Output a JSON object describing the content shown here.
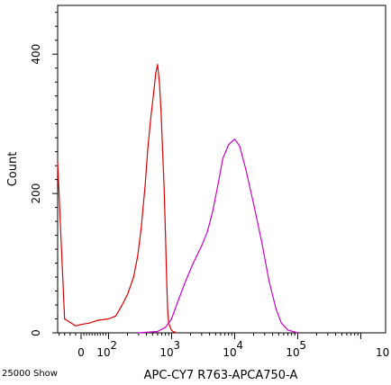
{
  "chart_data": {
    "type": "histogram",
    "title": "",
    "xlabel": "APC-CY7 R763-APCA750-A",
    "ylabel": "Count",
    "footnote": "25000 Show",
    "x_scale": "biexponential",
    "x_tick_labels": [
      "0",
      "10",
      "2",
      "10",
      "3",
      "10",
      "4",
      "10",
      "5",
      "10"
    ],
    "y_ticks": [
      0,
      200,
      400
    ],
    "ylim": [
      0,
      470
    ],
    "grid": false,
    "legend": "none",
    "series": [
      {
        "color": "#dd0000",
        "points": [
          [
            -100,
            245
          ],
          [
            -60,
            20
          ],
          [
            -20,
            10
          ],
          [
            0,
            12
          ],
          [
            30,
            14
          ],
          [
            60,
            18
          ],
          [
            100,
            20
          ],
          [
            130,
            24
          ],
          [
            160,
            38
          ],
          [
            200,
            55
          ],
          [
            250,
            80
          ],
          [
            290,
            110
          ],
          [
            330,
            150
          ],
          [
            380,
            210
          ],
          [
            420,
            265
          ],
          [
            470,
            310
          ],
          [
            520,
            345
          ],
          [
            560,
            372
          ],
          [
            600,
            385
          ],
          [
            640,
            360
          ],
          [
            680,
            320
          ],
          [
            720,
            265
          ],
          [
            760,
            210
          ],
          [
            800,
            140
          ],
          [
            840,
            70
          ],
          [
            870,
            30
          ],
          [
            900,
            15
          ],
          [
            950,
            8
          ],
          [
            1000,
            4
          ],
          [
            1050,
            2
          ],
          [
            1200,
            0
          ]
        ]
      },
      {
        "color": "#cc00cc",
        "points": [
          [
            300,
            0
          ],
          [
            600,
            2
          ],
          [
            800,
            8
          ],
          [
            900,
            14
          ],
          [
            1000,
            20
          ],
          [
            1200,
            40
          ],
          [
            1600,
            70
          ],
          [
            2200,
            100
          ],
          [
            3000,
            125
          ],
          [
            3700,
            145
          ],
          [
            4500,
            175
          ],
          [
            5500,
            215
          ],
          [
            6500,
            250
          ],
          [
            8000,
            270
          ],
          [
            10000,
            278
          ],
          [
            12000,
            268
          ],
          [
            15000,
            235
          ],
          [
            20000,
            185
          ],
          [
            27000,
            130
          ],
          [
            35000,
            75
          ],
          [
            45000,
            35
          ],
          [
            55000,
            14
          ],
          [
            70000,
            4
          ],
          [
            100000,
            0
          ]
        ]
      }
    ]
  }
}
